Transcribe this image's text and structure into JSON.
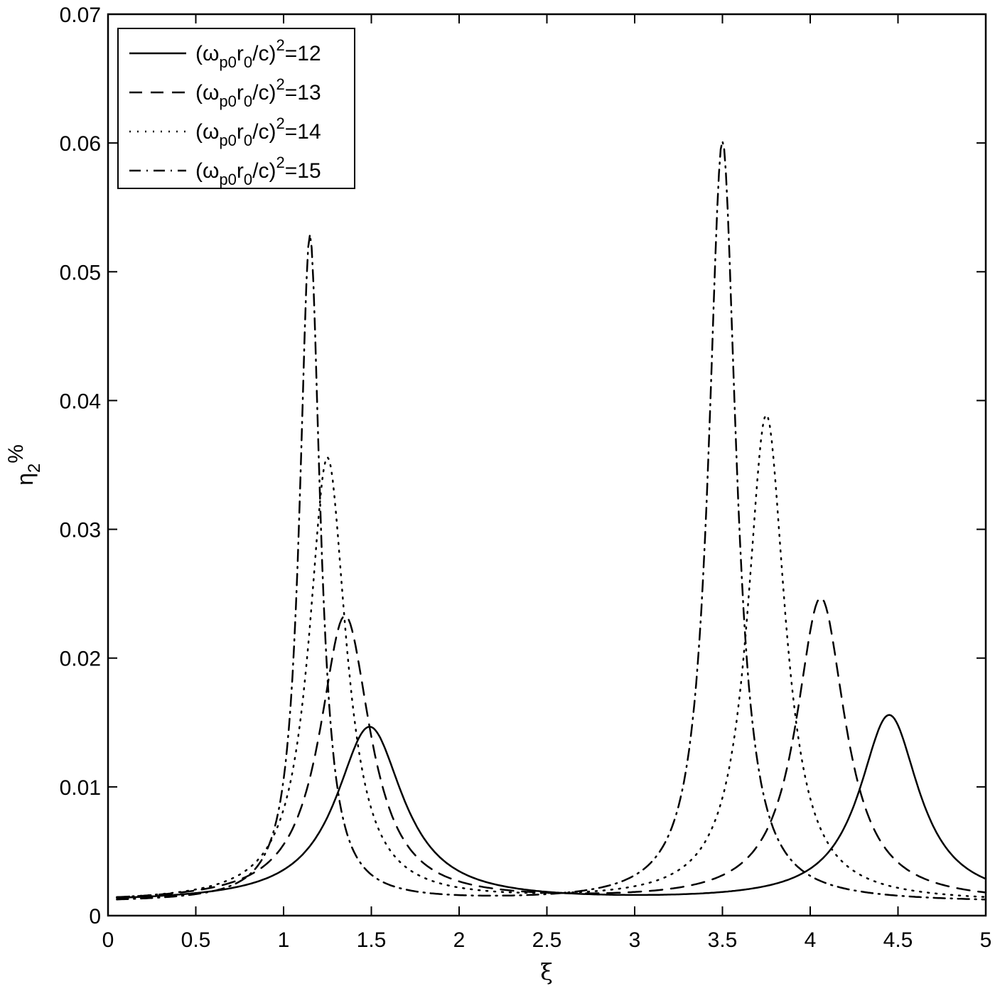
{
  "chart_data": {
    "type": "line",
    "title": "",
    "xlabel": "ξ",
    "ylabel": "η2%",
    "ylabel_main": "η",
    "ylabel_sub": "2",
    "ylabel_sup": "%",
    "xlim": [
      0,
      5
    ],
    "ylim": [
      0,
      0.07
    ],
    "xticks": [
      0,
      0.5,
      1,
      1.5,
      2,
      2.5,
      3,
      3.5,
      4,
      4.5,
      5
    ],
    "xtick_labels": [
      "0",
      "0.5",
      "1",
      "1.5",
      "2",
      "2.5",
      "3",
      "3.5",
      "4",
      "4.5",
      "5"
    ],
    "yticks": [
      0,
      0.01,
      0.02,
      0.03,
      0.04,
      0.05,
      0.06,
      0.07
    ],
    "ytick_labels": [
      "0",
      "0.01",
      "0.02",
      "0.03",
      "0.04",
      "0.05",
      "0.06",
      "0.07"
    ],
    "grid": false,
    "legend_position": "upper left",
    "x": [
      0.05,
      0.25,
      0.5,
      0.75,
      1.0,
      1.15,
      1.25,
      1.35,
      1.5,
      1.75,
      2.0,
      2.5,
      3.0,
      3.25,
      3.5,
      3.75,
      4.06,
      4.25,
      4.45,
      4.75,
      5.0
    ],
    "series": [
      {
        "name": "(ω_p0 r_0/c)^2=12",
        "style": "solid",
        "baseline": 0.001,
        "peaks": [
          {
            "center": 1.49,
            "height": 0.0136,
            "width": 0.233
          },
          {
            "center": 4.45,
            "height": 0.0145,
            "width": 0.207
          }
        ],
        "peak_values": [
          {
            "x": 1.49,
            "y": 0.0146
          },
          {
            "x": 4.45,
            "y": 0.0155
          }
        ],
        "values": [
          0.001,
          0.0011,
          0.0014,
          0.0021,
          0.0035,
          0.0056,
          0.0079,
          0.0107,
          0.0146,
          0.0086,
          0.0036,
          0.0014,
          0.001,
          0.0011,
          0.0013,
          0.0019,
          0.004,
          0.0078,
          0.0155,
          0.0073,
          0.0028
        ]
      },
      {
        "name": "(ω_p0 r_0/c)^2=13",
        "style": "dashed",
        "baseline": 0.001,
        "peaks": [
          {
            "center": 1.35,
            "height": 0.0222,
            "width": 0.175
          },
          {
            "center": 4.06,
            "height": 0.0236,
            "width": 0.17
          }
        ],
        "peak_values": [
          {
            "x": 1.35,
            "y": 0.0232
          },
          {
            "x": 4.06,
            "y": 0.0246
          }
        ],
        "values": [
          0.001,
          0.0012,
          0.0016,
          0.0027,
          0.0054,
          0.012,
          0.019,
          0.0232,
          0.015,
          0.0049,
          0.0022,
          0.0012,
          0.001,
          0.0013,
          0.0023,
          0.0065,
          0.0246,
          0.0128,
          0.0049,
          0.002,
          0.0012
        ]
      },
      {
        "name": "(ω_p0 r_0/c)^2=14",
        "style": "dotted",
        "baseline": 0.001,
        "peaks": [
          {
            "center": 1.25,
            "height": 0.0345,
            "width": 0.128
          },
          {
            "center": 3.75,
            "height": 0.0378,
            "width": 0.13
          }
        ],
        "peak_values": [
          {
            "x": 1.25,
            "y": 0.0355
          },
          {
            "x": 3.75,
            "y": 0.0388
          }
        ],
        "values": [
          0.001,
          0.0012,
          0.0018,
          0.0033,
          0.0082,
          0.024,
          0.0355,
          0.021,
          0.007,
          0.0025,
          0.0015,
          0.001,
          0.0012,
          0.0025,
          0.009,
          0.0388,
          0.0068,
          0.003,
          0.0017,
          0.0011,
          0.001
        ]
      },
      {
        "name": "(ω_p0 r_0/c)^2=15",
        "style": "dash-dot",
        "baseline": 0.001,
        "peaks": [
          {
            "center": 1.15,
            "height": 0.0518,
            "width": 0.071
          },
          {
            "center": 3.5,
            "height": 0.0591,
            "width": 0.095
          }
        ],
        "peak_values": [
          {
            "x": 1.15,
            "y": 0.0528
          },
          {
            "x": 3.5,
            "y": 0.0601
          }
        ],
        "values": [
          0.001,
          0.0012,
          0.002,
          0.0043,
          0.0104,
          0.0528,
          0.029,
          0.009,
          0.004,
          0.0018,
          0.0012,
          0.001,
          0.0013,
          0.0072,
          0.0601,
          0.0072,
          0.0025,
          0.0014,
          0.0011,
          0.001,
          0.001
        ]
      }
    ],
    "legend": [
      {
        "prefix": "(ω",
        "sub1": "p0",
        "mid": "r",
        "sub2": "0",
        "suffix": "/c)",
        "sup": "2",
        "tail": "=12",
        "style": "solid"
      },
      {
        "prefix": "(ω",
        "sub1": "p0",
        "mid": "r",
        "sub2": "0",
        "suffix": "/c)",
        "sup": "2",
        "tail": "=13",
        "style": "dashed"
      },
      {
        "prefix": "(ω",
        "sub1": "p0",
        "mid": "r",
        "sub2": "0",
        "suffix": "/c)",
        "sup": "2",
        "tail": "=14",
        "style": "dotted"
      },
      {
        "prefix": "(ω",
        "sub1": "p0",
        "mid": "r",
        "sub2": "0",
        "suffix": "/c)",
        "sup": "2",
        "tail": "=15",
        "style": "dash-dot"
      }
    ]
  },
  "colors": {
    "line": "#000000",
    "background": "#ffffff"
  }
}
